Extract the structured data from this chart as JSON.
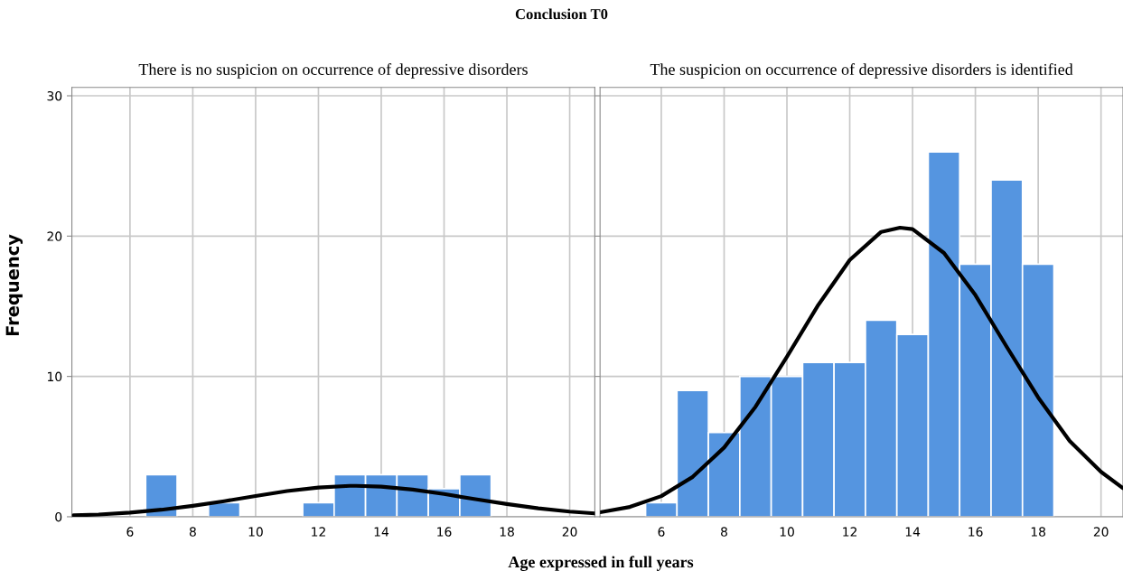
{
  "chart_data": [
    {
      "type": "histogram",
      "title": "Conclusion T0",
      "subtitle": "There is no suspicion on occurrence of depressive disorders",
      "xlabel": "Age expressed in full years",
      "ylabel": "Frequency",
      "bins": [
        6.5,
        7.5,
        8.5,
        9.5,
        10.5,
        11.5,
        12.5,
        13.5,
        14.5,
        15.5,
        16.5,
        17.5
      ],
      "values": [
        3,
        0,
        1,
        0,
        0,
        1,
        3,
        3,
        3,
        2,
        3
      ],
      "color": "#5595e0",
      "series": [
        {
          "type": "line",
          "color": "#000000",
          "x": [
            4.2,
            5,
            6,
            7,
            8,
            9,
            10,
            11,
            12,
            13,
            13.2,
            14,
            15,
            16,
            17,
            18,
            19,
            20,
            20.8
          ],
          "values": [
            0.1,
            0.16,
            0.3,
            0.5,
            0.78,
            1.11,
            1.48,
            1.83,
            2.08,
            2.2,
            2.2,
            2.15,
            1.94,
            1.62,
            1.25,
            0.91,
            0.6,
            0.37,
            0.24
          ]
        }
      ],
      "xlim": [
        4.15,
        20.8
      ],
      "xticks": [
        6,
        8,
        10,
        12,
        14,
        16,
        18,
        20
      ],
      "ylim": [
        0,
        30.6
      ],
      "yticks": [
        0,
        10,
        20,
        30
      ],
      "grid": true
    },
    {
      "type": "histogram",
      "subtitle": "The suspicion on occurrence of depressive disorders is identified",
      "bins": [
        5.5,
        6.5,
        7.5,
        8.5,
        9.5,
        10.5,
        11.5,
        12.5,
        13.5,
        14.5,
        15.5,
        16.5,
        17.5,
        18.5
      ],
      "values": [
        1,
        9,
        6,
        10,
        10,
        11,
        11,
        14,
        13,
        26,
        18,
        24,
        18
      ],
      "color": "#5595e0",
      "series": [
        {
          "type": "line",
          "color": "#000000",
          "x": [
            4.05,
            5,
            6,
            7,
            8,
            9,
            10,
            11,
            12,
            13,
            13.6,
            14,
            15,
            16,
            17,
            18,
            19,
            20,
            20.7
          ],
          "values": [
            0.32,
            0.7,
            1.47,
            2.84,
            4.93,
            7.84,
            11.4,
            15.1,
            18.3,
            20.3,
            20.6,
            20.5,
            18.8,
            15.8,
            12.1,
            8.5,
            5.4,
            3.2,
            2.04
          ]
        }
      ],
      "xlim": [
        4.05,
        20.7
      ],
      "xticks": [
        6,
        8,
        10,
        12,
        14,
        16,
        18,
        20
      ],
      "ylim": [
        0,
        30.6
      ],
      "yticks": [
        0,
        10,
        20,
        30
      ],
      "grid": true,
      "tick_labels": "x"
    }
  ]
}
